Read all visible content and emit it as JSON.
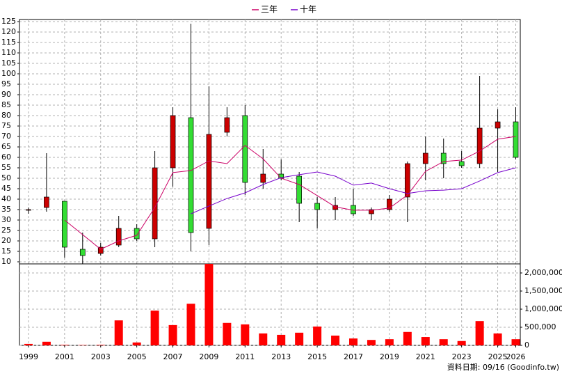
{
  "chart_data": {
    "type": "candlestick",
    "x": [
      1999,
      2000,
      2001,
      2002,
      2003,
      2004,
      2005,
      2006,
      2007,
      2008,
      2009,
      2010,
      2011,
      2012,
      2013,
      2014,
      2015,
      2016,
      2017,
      2018,
      2019,
      2020,
      2021,
      2022,
      2023,
      2024,
      2025,
      2026
    ],
    "open": [
      35,
      36,
      39,
      16,
      14,
      18,
      26,
      21,
      55,
      79,
      26,
      72,
      80,
      48,
      52,
      51,
      38,
      35,
      37,
      33,
      35,
      41,
      57,
      62,
      58,
      57,
      74,
      77
    ],
    "high": [
      36,
      62,
      39,
      24,
      19,
      32,
      28,
      63,
      84,
      124,
      94,
      84,
      85,
      64,
      59,
      53,
      41,
      41,
      45,
      36,
      42,
      58,
      70,
      69,
      63,
      99,
      83,
      84
    ],
    "low": [
      33,
      34,
      12,
      9,
      13,
      17,
      20,
      17,
      46,
      15,
      18,
      70,
      42,
      45,
      49,
      29,
      26,
      30,
      32,
      30,
      34,
      29,
      49,
      50,
      55,
      55,
      53,
      59
    ],
    "close": [
      35,
      41,
      17,
      13,
      17,
      26,
      21,
      55,
      80,
      24,
      71,
      79,
      48,
      52,
      50,
      38,
      35,
      37,
      33,
      35,
      40,
      57,
      62,
      57,
      56,
      74,
      77,
      60
    ],
    "up_color": "#cc0000",
    "down_color": "#33dd33",
    "xlim": [
      1998.5,
      2026.25
    ],
    "xticks": [
      1999,
      2001,
      2003,
      2005,
      2007,
      2009,
      2011,
      2013,
      2015,
      2017,
      2019,
      2021,
      2023,
      2025,
      2026
    ],
    "ylim": [
      9,
      126
    ],
    "yticks": [
      10,
      15,
      20,
      25,
      30,
      35,
      40,
      45,
      50,
      55,
      60,
      65,
      70,
      75,
      80,
      85,
      90,
      95,
      100,
      105,
      110,
      115,
      120,
      125
    ],
    "grid": true,
    "series": [
      {
        "name": "三年",
        "color": "#cc0066",
        "values": [
          null,
          null,
          30,
          23,
          16,
          20,
          22.7,
          36,
          52.7,
          53.7,
          58.3,
          57,
          65.7,
          59.3,
          50,
          47,
          41.7,
          36.3,
          34.7,
          34.7,
          35.7,
          42,
          53.3,
          58,
          58.7,
          63,
          68.7,
          70
        ]
      },
      {
        "name": "十年",
        "color": "#7700cc",
        "values": [
          null,
          null,
          null,
          null,
          null,
          null,
          null,
          null,
          null,
          33,
          36.7,
          40.3,
          43,
          47,
          50.3,
          51.7,
          53,
          51,
          46.7,
          47.7,
          45,
          42.7,
          44,
          44.3,
          45,
          48.7,
          52.7,
          55
        ]
      }
    ],
    "volume": {
      "color": "#ff0000",
      "values": [
        40000,
        100000,
        15000,
        10000,
        15000,
        690000,
        80000,
        960000,
        560000,
        1150000,
        2250000,
        620000,
        580000,
        330000,
        290000,
        350000,
        520000,
        270000,
        190000,
        150000,
        170000,
        370000,
        230000,
        170000,
        120000,
        670000,
        330000,
        170000
      ],
      "y2lim": [
        0,
        2250000
      ],
      "y2ticks": [
        0,
        {
          "value": 500000,
          "label": "500,000"
        },
        {
          "value": 1000000,
          "label": "1,000,000"
        },
        {
          "value": 1500000,
          "label": "1,500,000"
        },
        {
          "value": 2000000,
          "label": "2,000,000"
        }
      ]
    },
    "footer": "資料日期: 09/16  (Goodinfo.tw)"
  }
}
